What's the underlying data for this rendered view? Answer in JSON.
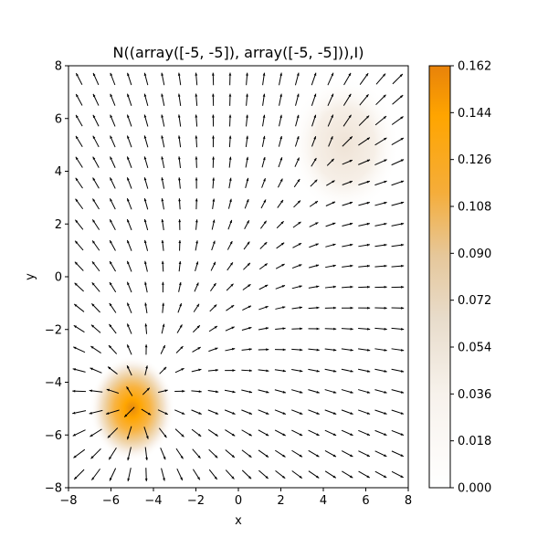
{
  "chart_data": {
    "type": "heatmap",
    "title": "N((array([-5, -5]), array([-5, -5])),I)",
    "xlabel": "x",
    "ylabel": "y",
    "xlim": [
      -8,
      8
    ],
    "ylim": [
      -8,
      8
    ],
    "x_ticks": [
      "−8",
      "−6",
      "−4",
      "−2",
      "0",
      "2",
      "4",
      "6",
      "8"
    ],
    "y_ticks": [
      "−8",
      "−6",
      "−4",
      "−2",
      "0",
      "2",
      "4",
      "6",
      "8"
    ],
    "colorbar": {
      "range": [
        0.0,
        0.162
      ],
      "ticks": [
        "0.000",
        "0.018",
        "0.036",
        "0.054",
        "0.072",
        "0.090",
        "0.108",
        "0.126",
        "0.144",
        "0.162"
      ],
      "colors": [
        "#ffffff",
        "#f2ede7",
        "#e6cfae",
        "#f5ad3a",
        "#ffa500",
        "#e8820a"
      ]
    },
    "density_peaks": [
      {
        "x": -5,
        "y": -5,
        "value": 0.159
      },
      {
        "x": 5,
        "y": 5,
        "value": 0.012
      }
    ],
    "quiver": {
      "x_range": [
        -7.5,
        7.5
      ],
      "y_range": [
        -7.5,
        7.5
      ],
      "count": 20,
      "arrow_color": "#000000"
    },
    "grid": false,
    "legend": "none"
  }
}
